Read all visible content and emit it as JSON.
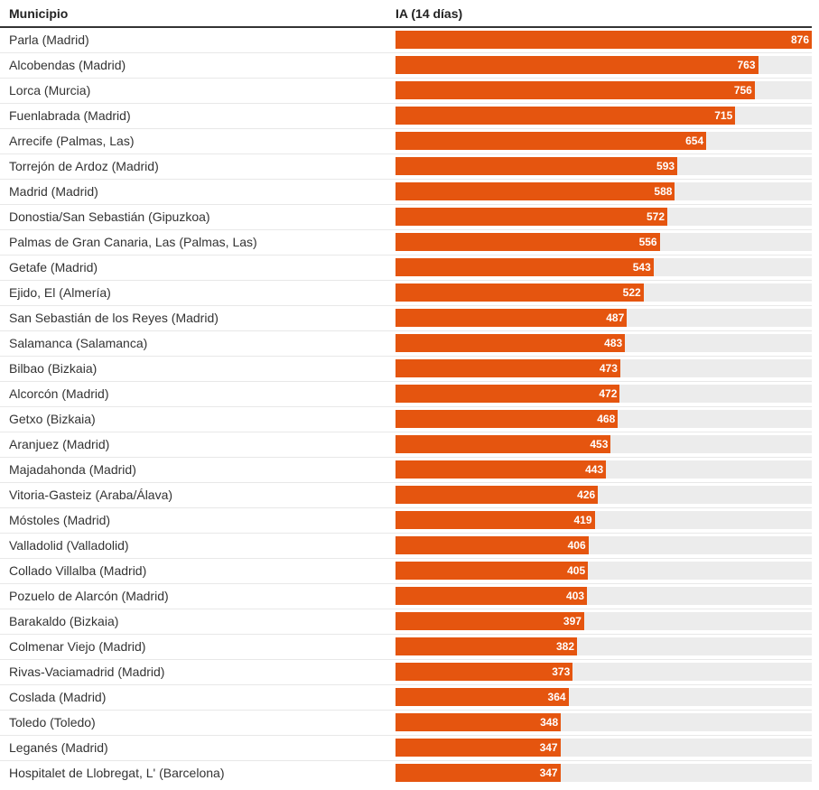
{
  "chart_data": {
    "type": "bar",
    "orientation": "horizontal",
    "headers": {
      "name": "Municipio",
      "value": "IA (14 días)"
    },
    "xlim": [
      0,
      876
    ],
    "bar_color": "#e5550f",
    "track_color": "#ececec",
    "categories": [
      "Parla (Madrid)",
      "Alcobendas (Madrid)",
      "Lorca (Murcia)",
      "Fuenlabrada (Madrid)",
      "Arrecife (Palmas, Las)",
      "Torrejón de Ardoz (Madrid)",
      "Madrid (Madrid)",
      "Donostia/San Sebastián (Gipuzkoa)",
      "Palmas de Gran Canaria, Las (Palmas, Las)",
      "Getafe (Madrid)",
      "Ejido, El (Almería)",
      "San Sebastián de los Reyes (Madrid)",
      "Salamanca (Salamanca)",
      "Bilbao (Bizkaia)",
      "Alcorcón (Madrid)",
      "Getxo (Bizkaia)",
      "Aranjuez (Madrid)",
      "Majadahonda (Madrid)",
      "Vitoria-Gasteiz (Araba/Álava)",
      "Móstoles (Madrid)",
      "Valladolid (Valladolid)",
      "Collado Villalba (Madrid)",
      "Pozuelo de Alarcón (Madrid)",
      "Barakaldo (Bizkaia)",
      "Colmenar Viejo (Madrid)",
      "Rivas-Vaciamadrid (Madrid)",
      "Coslada (Madrid)",
      "Toledo (Toledo)",
      "Leganés (Madrid)",
      "Hospitalet de Llobregat, L' (Barcelona)"
    ],
    "values": [
      876,
      763,
      756,
      715,
      654,
      593,
      588,
      572,
      556,
      543,
      522,
      487,
      483,
      473,
      472,
      468,
      453,
      443,
      426,
      419,
      406,
      405,
      403,
      397,
      382,
      373,
      364,
      348,
      347,
      347
    ]
  }
}
